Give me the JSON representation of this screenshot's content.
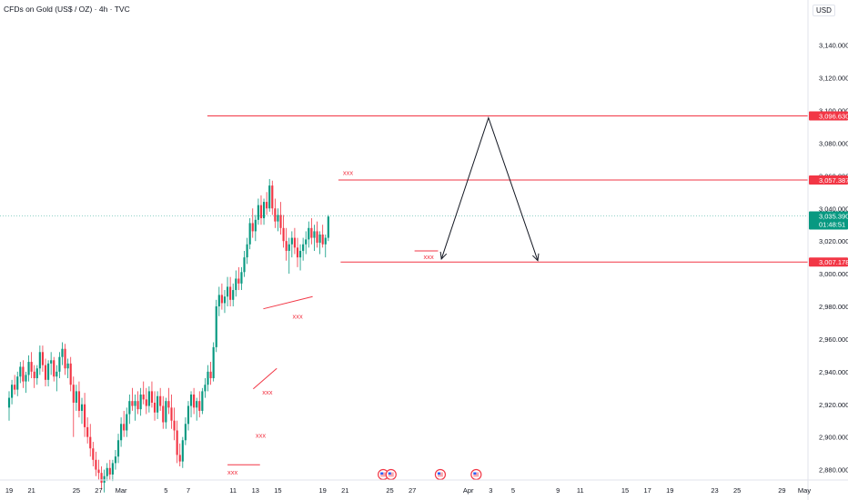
{
  "header": {
    "symbol": "CFDs on Gold (US$ / OZ) · 4h · TVC",
    "currency": "USD"
  },
  "chart_data": {
    "type": "candlestick",
    "ylim": [
      2872,
      3152
    ],
    "y_ticks": [
      2880,
      2900,
      2920,
      2940,
      2960,
      2980,
      3000,
      3020,
      3040,
      3060,
      3080,
      3100,
      3120,
      3140
    ],
    "y_tick_labels": [
      "2,880.000",
      "2,900.000",
      "2,920.000",
      "2,940.000",
      "2,960.000",
      "2,980.000",
      "3,000.000",
      "3,020.000",
      "3,040.000",
      "3,060.000",
      "3,080.000",
      "3,100.000",
      "3,120.000",
      "3,140.000"
    ],
    "x_ticks": [
      {
        "label": "19",
        "day": 0
      },
      {
        "label": "21",
        "day": 2
      },
      {
        "label": "25",
        "day": 6
      },
      {
        "label": "27",
        "day": 8
      },
      {
        "label": "Mar",
        "day": 10
      },
      {
        "label": "5",
        "day": 14
      },
      {
        "label": "7",
        "day": 16
      },
      {
        "label": "11",
        "day": 20
      },
      {
        "label": "13",
        "day": 22
      },
      {
        "label": "15",
        "day": 24
      },
      {
        "label": "19",
        "day": 28
      },
      {
        "label": "21",
        "day": 30
      },
      {
        "label": "25",
        "day": 34
      },
      {
        "label": "27",
        "day": 36
      },
      {
        "label": "Apr",
        "day": 41
      },
      {
        "label": "3",
        "day": 43
      },
      {
        "label": "5",
        "day": 45
      },
      {
        "label": "9",
        "day": 49
      },
      {
        "label": "11",
        "day": 51
      },
      {
        "label": "15",
        "day": 55
      },
      {
        "label": "17",
        "day": 57
      },
      {
        "label": "19",
        "day": 59
      },
      {
        "label": "23",
        "day": 63
      },
      {
        "label": "25",
        "day": 65
      },
      {
        "label": "29",
        "day": 69
      },
      {
        "label": "May",
        "day": 71
      }
    ],
    "price_labels": [
      {
        "name": "resistance-high",
        "value": 3096.63,
        "text": "3,096.630",
        "color": "#f23645"
      },
      {
        "name": "resistance-mid",
        "value": 3057.387,
        "text": "3,057.387",
        "color": "#f23645"
      },
      {
        "name": "current-price",
        "value": 3035.39,
        "text": "3,035.390",
        "sub": "01:48:51",
        "color": "#089981"
      },
      {
        "name": "support",
        "value": 3007.178,
        "text": "3,007.178",
        "color": "#f23645"
      }
    ],
    "levels": [
      {
        "value": 3096.63,
        "from_day": 17.7
      },
      {
        "value": 3057.387,
        "from_day": 29.4
      },
      {
        "value": 3007.178,
        "from_day": 29.6
      }
    ],
    "current_price": 3035.39,
    "annotations": [
      {
        "text": "xxx",
        "day": 29.8,
        "price": 3060.5
      },
      {
        "text": "xxx",
        "day": 37.0,
        "price": 3009.0
      },
      {
        "text": "xxx",
        "day": 25.3,
        "price": 2972.5
      },
      {
        "text": "xxx",
        "day": 22.6,
        "price": 2926.0
      },
      {
        "text": "xxx",
        "day": 22.0,
        "price": 2899.5
      },
      {
        "text": "xxx",
        "day": 19.5,
        "price": 2877.0
      }
    ],
    "trend_segments": [
      [
        [
          22.7,
          2978.5
        ],
        [
          27.1,
          2986.0
        ]
      ],
      [
        [
          21.8,
          2929.5
        ],
        [
          23.9,
          2942.0
        ]
      ],
      [
        [
          19.5,
          2883.0
        ],
        [
          22.4,
          2883.0
        ]
      ],
      [
        [
          36.2,
          3014.0
        ],
        [
          38.3,
          3014.0
        ]
      ]
    ],
    "projection": [
      [
        38.6,
        3009.0
      ],
      [
        42.8,
        3095.5
      ],
      [
        47.2,
        3008.0
      ]
    ],
    "event_markers": [
      33.4,
      34.1,
      38.5,
      41.7
    ],
    "candles_start_day": 0,
    "candles_per_day": 4,
    "candles": [
      [
        2918,
        2928,
        2910,
        2924
      ],
      [
        2924,
        2935,
        2920,
        2932
      ],
      [
        2932,
        2938,
        2926,
        2929
      ],
      [
        2929,
        2940,
        2925,
        2937
      ],
      [
        2937,
        2946,
        2933,
        2943
      ],
      [
        2943,
        2947,
        2930,
        2934
      ],
      [
        2934,
        2940,
        2927,
        2938
      ],
      [
        2938,
        2950,
        2934,
        2946
      ],
      [
        2946,
        2952,
        2936,
        2940
      ],
      [
        2940,
        2944,
        2930,
        2936
      ],
      [
        2936,
        2944,
        2932,
        2942
      ],
      [
        2942,
        2956,
        2938,
        2952
      ],
      [
        2952,
        2956,
        2940,
        2944
      ],
      [
        2944,
        2948,
        2931,
        2935
      ],
      [
        2935,
        2947,
        2931,
        2945
      ],
      [
        2945,
        2952,
        2938,
        2947
      ],
      [
        2947,
        2949,
        2934,
        2937
      ],
      [
        2937,
        2944,
        2928,
        2940
      ],
      [
        2940,
        2952,
        2936,
        2949
      ],
      [
        2949,
        2958,
        2944,
        2954
      ],
      [
        2954,
        2957,
        2938,
        2942
      ],
      [
        2942,
        2948,
        2936,
        2945
      ],
      [
        2945,
        2949,
        2928,
        2932
      ],
      [
        2932,
        2937,
        2900,
        2921
      ],
      [
        2921,
        2932,
        2916,
        2928
      ],
      [
        2928,
        2934,
        2912,
        2916
      ],
      [
        2916,
        2924,
        2908,
        2920
      ],
      [
        2920,
        2927,
        2900,
        2906
      ],
      [
        2906,
        2912,
        2896,
        2900
      ],
      [
        2900,
        2908,
        2888,
        2893
      ],
      [
        2893,
        2897,
        2882,
        2886
      ],
      [
        2886,
        2891,
        2876,
        2880
      ],
      [
        2880,
        2886,
        2874,
        2878
      ],
      [
        2878,
        2882,
        2868,
        2872
      ],
      [
        2872,
        2880,
        2866,
        2876
      ],
      [
        2876,
        2884,
        2873,
        2881
      ],
      [
        2881,
        2886,
        2874,
        2877
      ],
      [
        2877,
        2886,
        2873,
        2884
      ],
      [
        2884,
        2892,
        2880,
        2888
      ],
      [
        2888,
        2902,
        2884,
        2898
      ],
      [
        2898,
        2912,
        2894,
        2908
      ],
      [
        2908,
        2916,
        2900,
        2904
      ],
      [
        2904,
        2918,
        2900,
        2914
      ],
      [
        2914,
        2926,
        2908,
        2922
      ],
      [
        2922,
        2930,
        2916,
        2919
      ],
      [
        2919,
        2926,
        2910,
        2922
      ],
      [
        2922,
        2928,
        2914,
        2917
      ],
      [
        2917,
        2930,
        2913,
        2926
      ],
      [
        2926,
        2934,
        2920,
        2923
      ],
      [
        2923,
        2930,
        2914,
        2919
      ],
      [
        2919,
        2931,
        2915,
        2928
      ],
      [
        2928,
        2934,
        2918,
        2921
      ],
      [
        2921,
        2928,
        2910,
        2915
      ],
      [
        2915,
        2928,
        2911,
        2925
      ],
      [
        2925,
        2930,
        2916,
        2919
      ],
      [
        2919,
        2925,
        2905,
        2909
      ],
      [
        2909,
        2924,
        2905,
        2922
      ],
      [
        2922,
        2930,
        2914,
        2918
      ],
      [
        2918,
        2926,
        2905,
        2910
      ],
      [
        2910,
        2918,
        2898,
        2904
      ],
      [
        2904,
        2910,
        2884,
        2889
      ],
      [
        2889,
        2896,
        2882,
        2885
      ],
      [
        2885,
        2900,
        2881,
        2898
      ],
      [
        2898,
        2912,
        2895,
        2908
      ],
      [
        2908,
        2922,
        2904,
        2919
      ],
      [
        2919,
        2928,
        2912,
        2926
      ],
      [
        2926,
        2930,
        2914,
        2918
      ],
      [
        2918,
        2924,
        2910,
        2922
      ],
      [
        2922,
        2928,
        2912,
        2916
      ],
      [
        2916,
        2930,
        2914,
        2928
      ],
      [
        2928,
        2936,
        2924,
        2932
      ],
      [
        2932,
        2944,
        2928,
        2940
      ],
      [
        2940,
        2946,
        2932,
        2936
      ],
      [
        2936,
        2958,
        2934,
        2955
      ],
      [
        2955,
        2984,
        2952,
        2980
      ],
      [
        2980,
        2992,
        2974,
        2987
      ],
      [
        2987,
        2994,
        2978,
        2982
      ],
      [
        2982,
        2990,
        2976,
        2986
      ],
      [
        2986,
        2998,
        2980,
        2992
      ],
      [
        2992,
        2998,
        2980,
        2984
      ],
      [
        2984,
        2994,
        2980,
        2990
      ],
      [
        2990,
        3002,
        2986,
        2997
      ],
      [
        2997,
        3004,
        2990,
        2994
      ],
      [
        2994,
        3004,
        2990,
        3001
      ],
      [
        3001,
        3014,
        2998,
        3010
      ],
      [
        3010,
        3022,
        3006,
        3018
      ],
      [
        3018,
        3034,
        3015,
        3031
      ],
      [
        3031,
        3040,
        3022,
        3026
      ],
      [
        3026,
        3036,
        3020,
        3033
      ],
      [
        3033,
        3046,
        3030,
        3042
      ],
      [
        3042,
        3048,
        3030,
        3034
      ],
      [
        3034,
        3046,
        3030,
        3044
      ],
      [
        3044,
        3050,
        3036,
        3040
      ],
      [
        3040,
        3058,
        3038,
        3054
      ],
      [
        3054,
        3057,
        3036,
        3040
      ],
      [
        3040,
        3046,
        3028,
        3032
      ],
      [
        3032,
        3040,
        3026,
        3036
      ],
      [
        3036,
        3044,
        3024,
        3028
      ],
      [
        3028,
        3036,
        3016,
        3020
      ],
      [
        3020,
        3028,
        3008,
        3014
      ],
      [
        3014,
        3022,
        3000,
        3018
      ],
      [
        3018,
        3026,
        3010,
        3022
      ],
      [
        3022,
        3028,
        3012,
        3016
      ],
      [
        3016,
        3022,
        3004,
        3010
      ],
      [
        3010,
        3018,
        3002,
        3014
      ],
      [
        3014,
        3022,
        3008,
        3018
      ],
      [
        3018,
        3026,
        3012,
        3021
      ],
      [
        3021,
        3032,
        3016,
        3028
      ],
      [
        3028,
        3034,
        3018,
        3022
      ],
      [
        3022,
        3030,
        3014,
        3026
      ],
      [
        3026,
        3032,
        3016,
        3019
      ],
      [
        3019,
        3026,
        3012,
        3024
      ],
      [
        3024,
        3030,
        3016,
        3018
      ],
      [
        3018,
        3024,
        3010,
        3022
      ],
      [
        3022,
        3036,
        3020,
        3035
      ]
    ]
  }
}
